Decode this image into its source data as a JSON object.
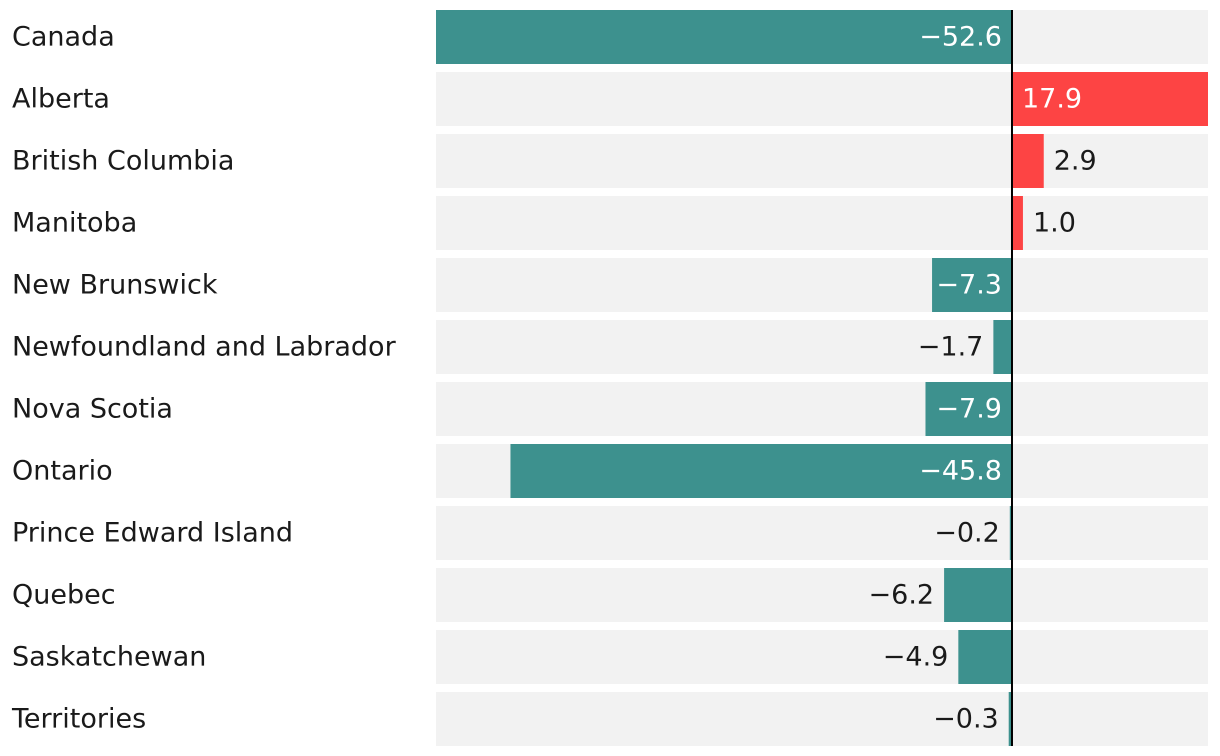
{
  "chart_data": {
    "type": "bar",
    "orientation": "horizontal",
    "categories": [
      "Canada",
      "Alberta",
      "British Columbia",
      "Manitoba",
      "New Brunswick",
      "Newfoundland and Labrador",
      "Nova Scotia",
      "Ontario",
      "Prince Edward Island",
      "Quebec",
      "Saskatchewan",
      "Territories"
    ],
    "values": [
      -52.6,
      17.9,
      2.9,
      1.0,
      -7.3,
      -1.7,
      -7.9,
      -45.8,
      -0.2,
      -6.2,
      -4.9,
      -0.3
    ],
    "data_labels": [
      "−52.6",
      "17.9",
      "2.9",
      "1.0",
      "−7.3",
      "−1.7",
      "−7.9",
      "−45.8",
      "−0.2",
      "−6.2",
      "−4.9",
      "−0.3"
    ],
    "xlim": [
      -52.6,
      17.9
    ],
    "grid": false,
    "colors": {
      "negative": "#3d918e",
      "positive": "#fd4444",
      "track": "#f2f2f2",
      "zero_line": "#000000",
      "label_dark": "#1a1a1a",
      "label_light": "#ffffff"
    }
  }
}
